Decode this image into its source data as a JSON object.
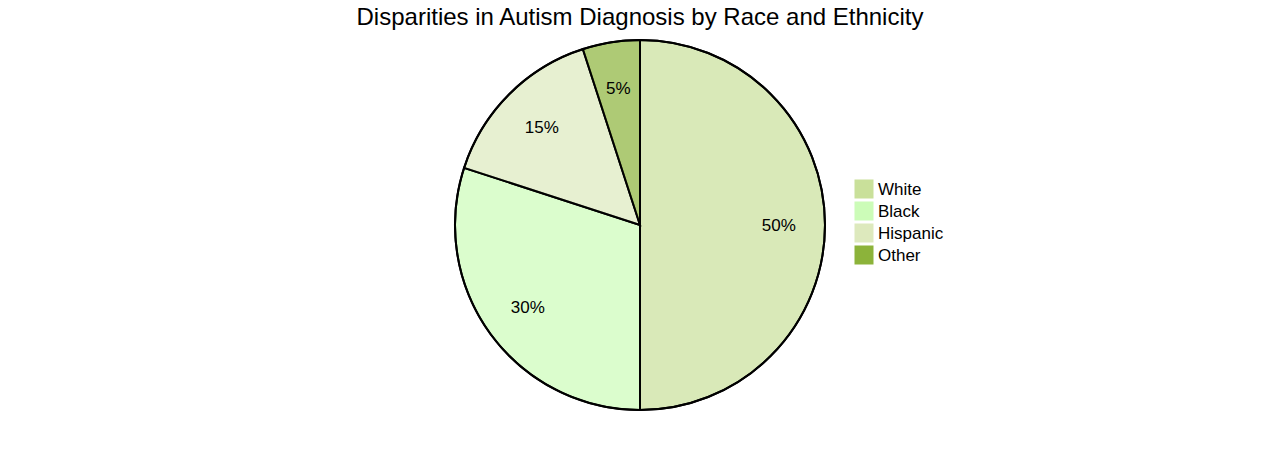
{
  "chart_data": {
    "type": "pie",
    "title": "Disparities in Autism Diagnosis by Race and Ethnicity",
    "categories": [
      "White",
      "Black",
      "Hispanic",
      "Other"
    ],
    "values": [
      50,
      30,
      15,
      5
    ],
    "value_labels": [
      "50%",
      "30%",
      "15%",
      "5%"
    ],
    "colors": [
      "#c9e09a",
      "#ccfcb8",
      "#dde9bd",
      "#8cb33a"
    ],
    "data_labels": true,
    "legend": "right"
  }
}
